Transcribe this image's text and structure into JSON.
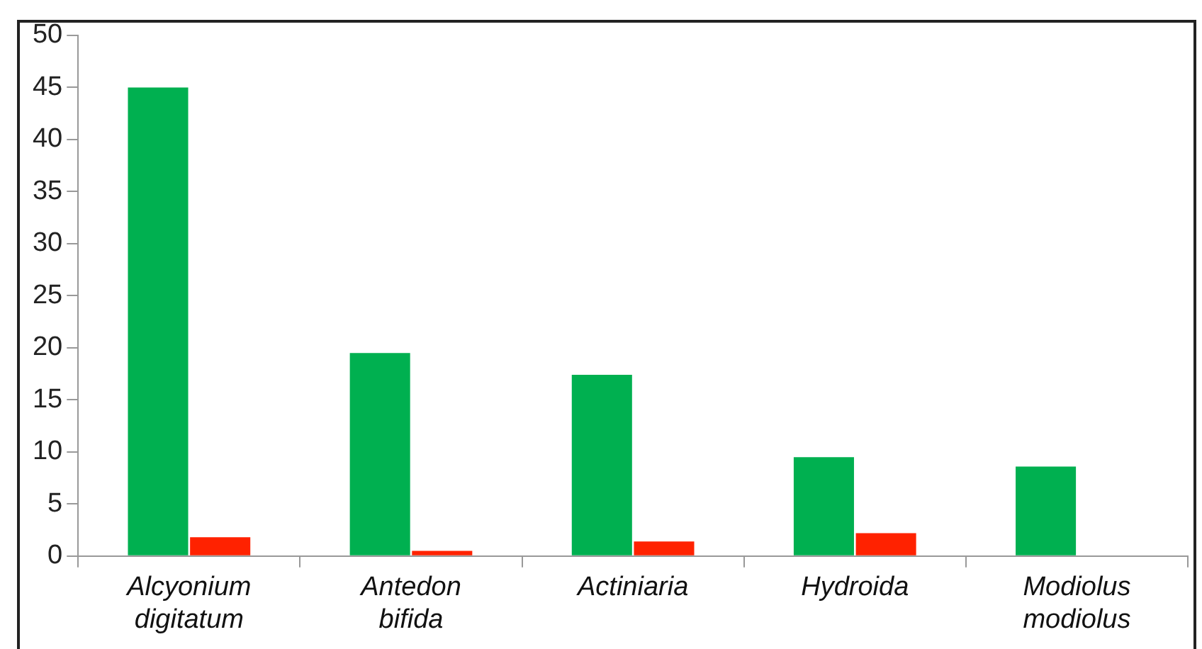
{
  "chart_data": {
    "type": "bar",
    "categories": [
      "Alcyonium digitatum",
      "Antedon bifida",
      "Actiniaria",
      "Hydroida",
      "Modiolus modiolus"
    ],
    "series": [
      {
        "color": "#00b050",
        "values": [
          45,
          19.5,
          17.4,
          9.5,
          8.6
        ]
      },
      {
        "color": "#ff2200",
        "values": [
          1.8,
          0.5,
          1.4,
          2.2,
          0
        ]
      }
    ],
    "ylim": [
      0,
      50
    ],
    "yticks": [
      0,
      5,
      10,
      15,
      20,
      25,
      30,
      35,
      40,
      45,
      50
    ],
    "grid": false,
    "legend": false
  }
}
